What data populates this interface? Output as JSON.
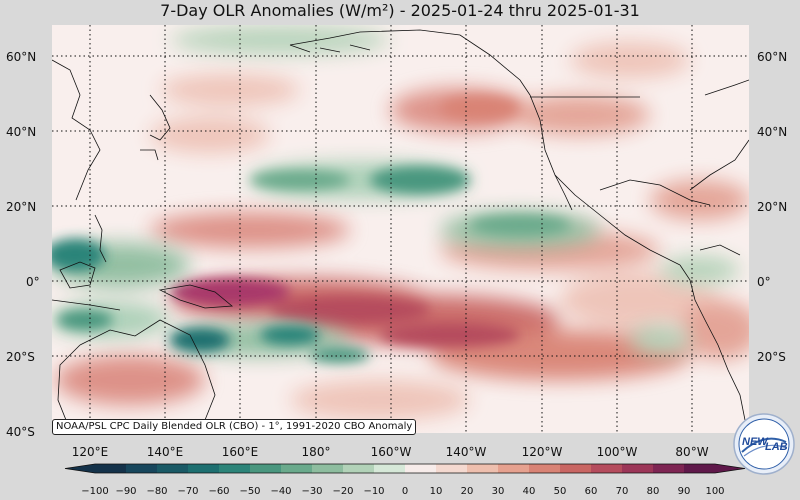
{
  "title": "7-Day OLR Anomalies (W/m²) - 2025-01-24 thru 2025-01-31",
  "source_note": "NOAA/PSL CPC Daily Blended OLR (CBO) - 1°, 1991-2020 CBO Anomaly",
  "lat_labels": [
    "60°N",
    "40°N",
    "20°N",
    "0°",
    "20°S",
    "40°S"
  ],
  "lon_labels": [
    "120°E",
    "140°E",
    "160°E",
    "180°",
    "160°W",
    "140°W",
    "120°W",
    "100°W",
    "80°W"
  ],
  "colorbar": {
    "ticks": [
      "−100",
      "−90",
      "−80",
      "−70",
      "−60",
      "−50",
      "−40",
      "−30",
      "−20",
      "−10",
      "0",
      "10",
      "20",
      "30",
      "40",
      "50",
      "60",
      "70",
      "80",
      "90",
      "100"
    ],
    "colors": [
      "#14324a",
      "#17465c",
      "#1a5a66",
      "#1d6f70",
      "#2c8479",
      "#4a977f",
      "#6aaa8c",
      "#8ebd9f",
      "#b2d2b8",
      "#d6e8d8",
      "#f7ecea",
      "#f4d9d0",
      "#eebfae",
      "#e6a18f",
      "#d98375",
      "#c96663",
      "#b54c5d",
      "#9c3658",
      "#7e2553",
      "#5f184a"
    ]
  },
  "logo": {
    "text_primary": "NEW",
    "text_secondary": "LAB"
  },
  "colors": {
    "ocean_neutral": "#f9efed",
    "positive_strong": "#a8376b",
    "positive_mid": "#dc8d83",
    "positive_weak": "#eec3b7",
    "negative_strong": "#1f5a66",
    "negative_mid": "#5a9b84",
    "negative_weak": "#a8cfb5"
  }
}
